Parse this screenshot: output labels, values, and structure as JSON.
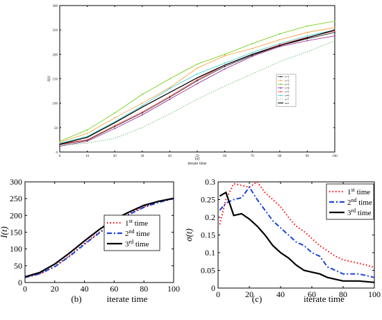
{
  "chart_data": [
    {
      "id": "a",
      "type": "line",
      "panel_label": "(a)",
      "xlabel": "iterate time",
      "ylabel": "I(t)",
      "xlim": [
        0,
        100
      ],
      "ylim": [
        0,
        300
      ],
      "xticks": [
        "0",
        "10",
        "20",
        "30",
        "40",
        "50",
        "60",
        "70",
        "80",
        "90",
        "100"
      ],
      "yticks": [
        "0",
        "50",
        "100",
        "150",
        "200",
        "250",
        "300"
      ],
      "legend_position": "right",
      "x": [
        0,
        10,
        20,
        30,
        40,
        50,
        60,
        70,
        80,
        90,
        100
      ],
      "series": [
        {
          "name": "s=1",
          "color": "#1a1a1a",
          "style": "dot-line",
          "values": [
            15,
            24,
            52,
            80,
            112,
            146,
            175,
            198,
            218,
            232,
            245
          ]
        },
        {
          "name": "s=2",
          "color": "#ff9933",
          "style": "dot-line",
          "values": [
            20,
            38,
            70,
            100,
            132,
            172,
            197,
            212,
            230,
            245,
            255
          ]
        },
        {
          "name": "s=3",
          "color": "#66cc00",
          "style": "dot-line",
          "values": [
            22,
            45,
            80,
            118,
            150,
            180,
            200,
            222,
            242,
            258,
            268
          ]
        },
        {
          "name": "s=4",
          "color": "#8b1a8b",
          "style": "dot-line",
          "values": [
            12,
            22,
            48,
            76,
            108,
            140,
            170,
            196,
            216,
            228,
            238
          ]
        },
        {
          "name": "s=5",
          "color": "#ff3333",
          "style": "dot-line",
          "values": [
            16,
            25,
            54,
            82,
            114,
            148,
            178,
            200,
            220,
            235,
            248
          ]
        },
        {
          "name": "s=6",
          "color": "#33cccc",
          "style": "dot-line",
          "values": [
            18,
            32,
            62,
            95,
            130,
            160,
            182,
            204,
            222,
            238,
            250
          ]
        },
        {
          "name": "s=7",
          "color": "#119922",
          "style": "dotted",
          "values": [
            14,
            18,
            28,
            50,
            78,
            108,
            135,
            160,
            185,
            205,
            228
          ]
        },
        {
          "name": "ave",
          "color": "#000000",
          "style": "solid",
          "values": [
            16,
            30,
            60,
            92,
            122,
            152,
            178,
            200,
            218,
            234,
            250
          ]
        }
      ]
    },
    {
      "id": "b",
      "type": "line",
      "panel_label": "(b)",
      "xlabel": "iterate time",
      "ylabel": "I(t)",
      "xlim": [
        0,
        100
      ],
      "ylim": [
        0,
        300
      ],
      "xticks": [
        "0",
        "20",
        "40",
        "60",
        "80",
        "100"
      ],
      "yticks": [
        "0",
        "50",
        "100",
        "150",
        "200",
        "250",
        "300"
      ],
      "legend_position": "right",
      "x": [
        0,
        10,
        20,
        30,
        40,
        50,
        60,
        70,
        80,
        90,
        100
      ],
      "series": [
        {
          "name_base": "1",
          "name_sup": "st",
          "name_tail": " time",
          "color": "#ff0000",
          "style": "dotted",
          "values": [
            15,
            26,
            48,
            80,
            116,
            150,
            180,
            205,
            226,
            240,
            251
          ]
        },
        {
          "name_base": "2",
          "name_sup": "nd",
          "name_tail": " time",
          "color": "#1a44dd",
          "style": "dashdot",
          "values": [
            15,
            26,
            47,
            78,
            114,
            148,
            178,
            203,
            224,
            239,
            250
          ]
        },
        {
          "name_base": "3",
          "name_sup": "rd",
          "name_tail": " time",
          "color": "#000000",
          "style": "solid",
          "values": [
            17,
            30,
            55,
            88,
            124,
            158,
            188,
            210,
            230,
            242,
            251
          ]
        }
      ]
    },
    {
      "id": "c",
      "type": "line",
      "panel_label": "(c)",
      "xlabel": "iterate time",
      "ylabel": "σ(t)",
      "xlim": [
        0,
        100
      ],
      "ylim": [
        0,
        0.3
      ],
      "xticks": [
        "0",
        "20",
        "40",
        "60",
        "80",
        "100"
      ],
      "yticks": [
        "0",
        "0.05",
        "0.1",
        "0.15",
        "0.2",
        "0.25",
        "0.3"
      ],
      "legend_position": "top-right",
      "x": [
        1,
        5,
        10,
        15,
        20,
        25,
        30,
        35,
        40,
        45,
        50,
        55,
        60,
        65,
        70,
        75,
        80,
        85,
        90,
        95,
        100
      ],
      "series": [
        {
          "name_base": "1",
          "name_sup": "st",
          "name_tail": " time",
          "color": "#ff0000",
          "style": "dotted",
          "values": [
            0.18,
            0.25,
            0.295,
            0.29,
            0.285,
            0.3,
            0.27,
            0.25,
            0.23,
            0.2,
            0.175,
            0.16,
            0.14,
            0.12,
            0.105,
            0.09,
            0.08,
            0.075,
            0.07,
            0.065,
            0.058
          ]
        },
        {
          "name_base": "2",
          "name_sup": "nd",
          "name_tail": " time",
          "color": "#1a44dd",
          "style": "dashdot",
          "values": [
            0.22,
            0.24,
            0.25,
            0.255,
            0.285,
            0.25,
            0.22,
            0.19,
            0.17,
            0.15,
            0.13,
            0.12,
            0.1,
            0.09,
            0.06,
            0.05,
            0.04,
            0.04,
            0.04,
            0.035,
            0.03
          ]
        },
        {
          "name_base": "3",
          "name_sup": "rd",
          "name_tail": " time",
          "color": "#000000",
          "style": "solid",
          "values": [
            0.26,
            0.27,
            0.205,
            0.21,
            0.195,
            0.175,
            0.15,
            0.12,
            0.1,
            0.085,
            0.065,
            0.05,
            0.045,
            0.04,
            0.03,
            0.025,
            0.02,
            0.02,
            0.02,
            0.018,
            0.016
          ]
        }
      ]
    }
  ]
}
